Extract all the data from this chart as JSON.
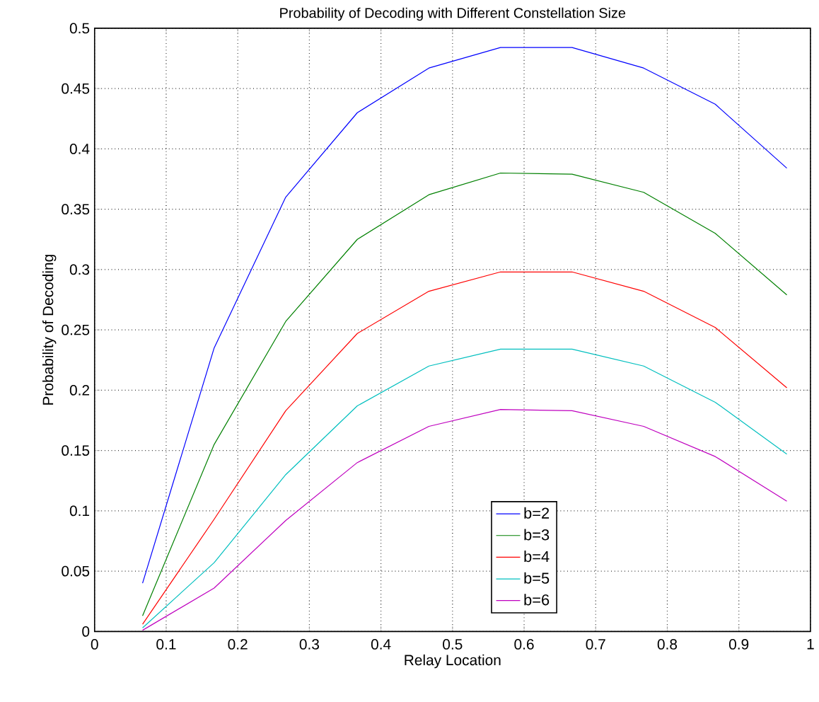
{
  "chart_data": {
    "type": "line",
    "title": "Probability of Decoding with Different Constellation Size",
    "xlabel": "Relay Location",
    "ylabel": "Probability of Decoding",
    "x": [
      0.067,
      0.167,
      0.267,
      0.367,
      0.467,
      0.567,
      0.667,
      0.767,
      0.867,
      0.967
    ],
    "series": [
      {
        "name": "b=2",
        "color": "#0000ff",
        "values": [
          0.04,
          0.235,
          0.36,
          0.43,
          0.467,
          0.484,
          0.484,
          0.467,
          0.437,
          0.384
        ]
      },
      {
        "name": "b=3",
        "color": "#008000",
        "values": [
          0.013,
          0.155,
          0.257,
          0.325,
          0.362,
          0.38,
          0.379,
          0.364,
          0.33,
          0.279
        ]
      },
      {
        "name": "b=4",
        "color": "#ff0000",
        "values": [
          0.006,
          0.093,
          0.183,
          0.247,
          0.282,
          0.298,
          0.298,
          0.282,
          0.252,
          0.202
        ]
      },
      {
        "name": "b=5",
        "color": "#00bfbf",
        "values": [
          0.003,
          0.057,
          0.13,
          0.187,
          0.22,
          0.234,
          0.234,
          0.22,
          0.19,
          0.147
        ]
      },
      {
        "name": "b=6",
        "color": "#bf00bf",
        "values": [
          0.001,
          0.036,
          0.092,
          0.14,
          0.17,
          0.184,
          0.183,
          0.17,
          0.145,
          0.108
        ]
      }
    ],
    "xlim": [
      0,
      1
    ],
    "ylim": [
      0,
      0.5
    ],
    "xticks": [
      0,
      0.1,
      0.2,
      0.3,
      0.4,
      0.5,
      0.6,
      0.7,
      0.8,
      0.9,
      1
    ],
    "yticks": [
      0,
      0.05,
      0.1,
      0.15,
      0.2,
      0.25,
      0.3,
      0.35,
      0.4,
      0.45,
      0.5
    ],
    "grid": true,
    "legend": "bottom",
    "marker": "none",
    "line_style": "solid"
  }
}
